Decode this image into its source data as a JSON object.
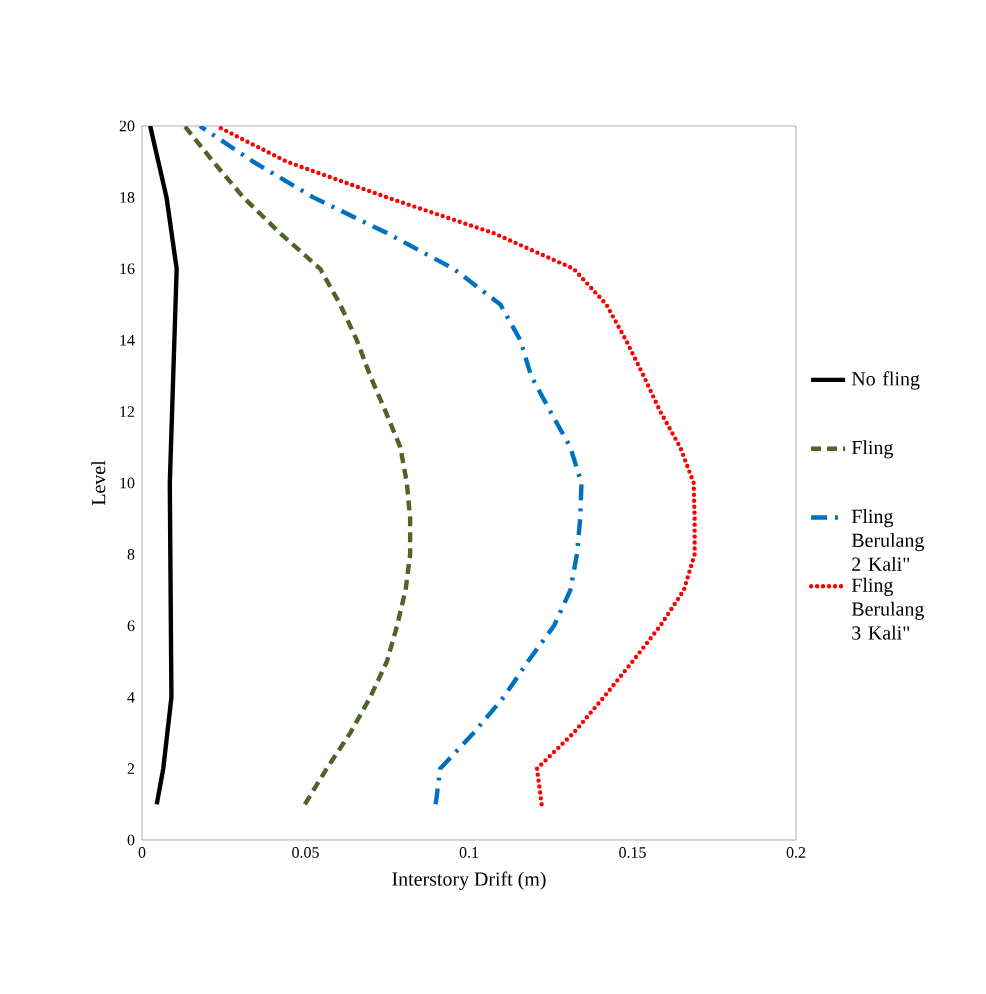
{
  "chart_data": {
    "type": "line",
    "xlabel": "Interstory Drift (m)",
    "ylabel": "Level",
    "xlim": [
      0,
      0.2
    ],
    "ylim": [
      0,
      20
    ],
    "xticks": [
      0,
      0.05,
      0.1,
      0.15,
      0.2
    ],
    "yticks": [
      0,
      2,
      4,
      6,
      8,
      10,
      12,
      14,
      16,
      18,
      20
    ],
    "legend": "right",
    "grid": false,
    "series": [
      {
        "name": "No fling",
        "color": "#000000",
        "line_style": "solid",
        "x": [
          0.0045,
          0.0065,
          0.009,
          0.0085,
          0.0106,
          0.0075,
          0.0025
        ],
        "values": [
          1,
          2,
          4,
          10,
          16,
          18,
          20
        ]
      },
      {
        "name": "Fling",
        "color": "#4f6228",
        "line_style": "dashed",
        "x": [
          0.0498,
          0.0565,
          0.0637,
          0.0698,
          0.0749,
          0.078,
          0.0806,
          0.082,
          0.082,
          0.081,
          0.079,
          0.0745,
          0.0698,
          0.0657,
          0.0606,
          0.0545,
          0.0422,
          0.031,
          0.0218,
          0.013
        ],
        "values": [
          1,
          2,
          3,
          4,
          5,
          6,
          7,
          8,
          9,
          10,
          11,
          12,
          13,
          14,
          15,
          16,
          17,
          18,
          19,
          20
        ]
      },
      {
        "name": "Fling Berulang 2 Kali\"",
        "color": "#0070c0",
        "line_style": "dashdot",
        "x": [
          0.0898,
          0.0912,
          0.1014,
          0.1106,
          0.118,
          0.126,
          0.131,
          0.133,
          0.134,
          0.1344,
          0.131,
          0.1249,
          0.119,
          0.1157,
          0.1096,
          0.0953,
          0.0749,
          0.0524,
          0.034,
          0.0177
        ],
        "values": [
          1,
          2,
          3,
          4,
          5,
          6,
          7,
          8,
          9,
          10,
          11,
          12,
          13,
          14,
          15,
          16,
          17,
          18,
          19,
          20
        ]
      },
      {
        "name": "Fling Berulang 3 Kali\"",
        "color": "#ff0000",
        "line_style": "dotted",
        "x": [
          0.1222,
          0.1208,
          0.132,
          0.1412,
          0.15,
          0.1585,
          0.1657,
          0.169,
          0.169,
          0.1687,
          0.1646,
          0.1585,
          0.1534,
          0.148,
          0.142,
          0.132,
          0.1075,
          0.0749,
          0.0443,
          0.0228
        ],
        "values": [
          1,
          2,
          3,
          4,
          5,
          6,
          7,
          8,
          9,
          10,
          11,
          12,
          13,
          14,
          15,
          16,
          17,
          18,
          19,
          20
        ]
      }
    ]
  }
}
